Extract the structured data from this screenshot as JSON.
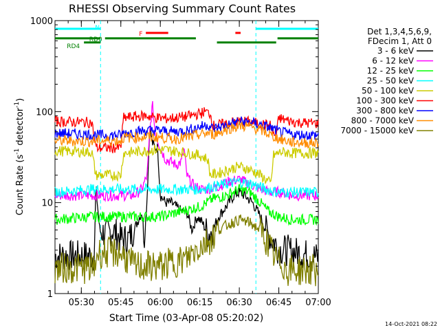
{
  "chart_data": {
    "type": "line",
    "title": "RHESSI Observing Summary Count Rates",
    "xlabel": "Start Time (03-Apr-08 05:20:02)",
    "ylabel_main": "Count Rate (s",
    "ylabel_sup1": "-1",
    "ylabel_mid": " detector",
    "ylabel_sup2": "-1",
    "ylabel_end": ")",
    "y_scale": "log",
    "ylim": [
      1,
      1000
    ],
    "xlim_minutes": [
      0,
      100
    ],
    "x_ticks": [
      {
        "t": 10,
        "label": "05:30"
      },
      {
        "t": 25,
        "label": "05:45"
      },
      {
        "t": 40,
        "label": "06:00"
      },
      {
        "t": 55,
        "label": "06:15"
      },
      {
        "t": 70,
        "label": "06:30"
      },
      {
        "t": 85,
        "label": "06:45"
      },
      {
        "t": 100,
        "label": "07:00"
      }
    ],
    "y_ticks": [
      {
        "v": 1,
        "label": "1"
      },
      {
        "v": 10,
        "label": "10"
      },
      {
        "v": 100,
        "label": "100"
      },
      {
        "v": 1000,
        "label": "1000"
      }
    ],
    "legend_header": [
      "Det 1,3,4,5,6,9,",
      "FDecim 1, Att 0"
    ],
    "legend_placement": "right",
    "series": [
      {
        "name": "3 - 6 keV",
        "color": "#000000",
        "points": [
          [
            0,
            2.6
          ],
          [
            15,
            2.6
          ],
          [
            15.5,
            15
          ],
          [
            17,
            5
          ],
          [
            19,
            4.5
          ],
          [
            22,
            5
          ],
          [
            25,
            4
          ],
          [
            28,
            4
          ],
          [
            30,
            5
          ],
          [
            33,
            8
          ],
          [
            34,
            4
          ],
          [
            35,
            12
          ],
          [
            36,
            70
          ],
          [
            37,
            45
          ],
          [
            38,
            40
          ],
          [
            39,
            40
          ],
          [
            40,
            12
          ],
          [
            42,
            10
          ],
          [
            44,
            10
          ],
          [
            46,
            9
          ],
          [
            48,
            8
          ],
          [
            50,
            8
          ],
          [
            52,
            5
          ],
          [
            54,
            7
          ],
          [
            56,
            6
          ],
          [
            58,
            4.5
          ],
          [
            60,
            5
          ],
          [
            62,
            7
          ],
          [
            65,
            9
          ],
          [
            68,
            12
          ],
          [
            70,
            13
          ],
          [
            72,
            12
          ],
          [
            75,
            10
          ],
          [
            78,
            7
          ],
          [
            80,
            5
          ],
          [
            82,
            4
          ],
          [
            84,
            3.5
          ],
          [
            85,
            3
          ],
          [
            86,
            3
          ],
          [
            88,
            3
          ],
          [
            100,
            2.5
          ]
        ]
      },
      {
        "name": "6 - 12 keV",
        "color": "#ff00ff",
        "points": [
          [
            0,
            12
          ],
          [
            14,
            12
          ],
          [
            16,
            12
          ],
          [
            25,
            12
          ],
          [
            30,
            12
          ],
          [
            33,
            14
          ],
          [
            35,
            20
          ],
          [
            36,
            60
          ],
          [
            37,
            120
          ],
          [
            38,
            60
          ],
          [
            40,
            40
          ],
          [
            42,
            30
          ],
          [
            44,
            28
          ],
          [
            46,
            26
          ],
          [
            48,
            28
          ],
          [
            49,
            40
          ],
          [
            50,
            20
          ],
          [
            52,
            16
          ],
          [
            55,
            14
          ],
          [
            58,
            14
          ],
          [
            62,
            15
          ],
          [
            66,
            17
          ],
          [
            70,
            18
          ],
          [
            74,
            16
          ],
          [
            78,
            14
          ],
          [
            82,
            13
          ],
          [
            86,
            13
          ],
          [
            90,
            12
          ],
          [
            100,
            12
          ]
        ]
      },
      {
        "name": "12 - 25 keV",
        "color": "#00ff00",
        "points": [
          [
            0,
            6.5
          ],
          [
            14,
            7
          ],
          [
            17,
            7
          ],
          [
            25,
            7
          ],
          [
            35,
            7
          ],
          [
            40,
            7
          ],
          [
            48,
            8
          ],
          [
            55,
            9
          ],
          [
            60,
            11
          ],
          [
            65,
            12
          ],
          [
            70,
            14
          ],
          [
            74,
            13
          ],
          [
            78,
            10
          ],
          [
            81,
            8
          ],
          [
            85,
            7
          ],
          [
            90,
            6.5
          ],
          [
            100,
            6.5
          ]
        ]
      },
      {
        "name": "25 - 50 keV",
        "color": "#00ffff",
        "points": [
          [
            0,
            13
          ],
          [
            14,
            14
          ],
          [
            20,
            14
          ],
          [
            30,
            14
          ],
          [
            40,
            14
          ],
          [
            48,
            14
          ],
          [
            55,
            14
          ],
          [
            60,
            15
          ],
          [
            65,
            16
          ],
          [
            70,
            17
          ],
          [
            75,
            16
          ],
          [
            80,
            14
          ],
          [
            85,
            13
          ],
          [
            90,
            13
          ],
          [
            100,
            13
          ]
        ]
      },
      {
        "name": "50 - 100 keV",
        "color": "#cccc00",
        "points": [
          [
            0,
            37
          ],
          [
            14,
            36
          ],
          [
            15.5,
            20
          ],
          [
            16,
            20
          ],
          [
            25,
            20
          ],
          [
            26,
            35
          ],
          [
            30,
            36
          ],
          [
            38,
            38
          ],
          [
            42,
            38
          ],
          [
            48,
            36
          ],
          [
            55,
            33
          ],
          [
            58,
            30
          ],
          [
            59,
            20
          ],
          [
            62,
            21
          ],
          [
            66,
            23
          ],
          [
            70,
            25
          ],
          [
            74,
            23
          ],
          [
            78,
            20
          ],
          [
            80,
            18
          ],
          [
            82,
            16
          ],
          [
            83,
            33
          ],
          [
            86,
            36
          ],
          [
            90,
            35
          ],
          [
            100,
            35
          ]
        ]
      },
      {
        "name": "100 - 300 keV",
        "color": "#ff0000",
        "points": [
          [
            0,
            78
          ],
          [
            14,
            76
          ],
          [
            15.5,
            40
          ],
          [
            25,
            40
          ],
          [
            26,
            85
          ],
          [
            30,
            88
          ],
          [
            35,
            90
          ],
          [
            38,
            86
          ],
          [
            42,
            84
          ],
          [
            45,
            85
          ],
          [
            50,
            88
          ],
          [
            55,
            95
          ],
          [
            57,
            100
          ],
          [
            59,
            95
          ],
          [
            60,
            70
          ],
          [
            63,
            72
          ],
          [
            66,
            75
          ],
          [
            70,
            78
          ],
          [
            74,
            77
          ],
          [
            78,
            73
          ],
          [
            82,
            70
          ],
          [
            83,
            55
          ],
          [
            84,
            55
          ],
          [
            85,
            85
          ],
          [
            88,
            80
          ],
          [
            92,
            76
          ],
          [
            100,
            74
          ]
        ]
      },
      {
        "name": "300 - 800 keV",
        "color": "#0000ff",
        "points": [
          [
            0,
            58
          ],
          [
            14,
            56
          ],
          [
            16,
            55
          ],
          [
            25,
            55
          ],
          [
            26,
            58
          ],
          [
            30,
            60
          ],
          [
            35,
            62
          ],
          [
            40,
            62
          ],
          [
            45,
            60
          ],
          [
            50,
            62
          ],
          [
            55,
            68
          ],
          [
            58,
            72
          ],
          [
            60,
            65
          ],
          [
            63,
            68
          ],
          [
            66,
            72
          ],
          [
            70,
            78
          ],
          [
            74,
            76
          ],
          [
            78,
            72
          ],
          [
            82,
            66
          ],
          [
            85,
            60
          ],
          [
            90,
            56
          ],
          [
            100,
            55
          ]
        ]
      },
      {
        "name": "800 - 7000 keV",
        "color": "#ff8c00",
        "points": [
          [
            0,
            48
          ],
          [
            14,
            47
          ],
          [
            16,
            48
          ],
          [
            25,
            48
          ],
          [
            26,
            52
          ],
          [
            30,
            52
          ],
          [
            35,
            53
          ],
          [
            40,
            52
          ],
          [
            45,
            50
          ],
          [
            50,
            52
          ],
          [
            55,
            56
          ],
          [
            58,
            58
          ],
          [
            60,
            56
          ],
          [
            63,
            60
          ],
          [
            66,
            65
          ],
          [
            70,
            70
          ],
          [
            74,
            68
          ],
          [
            78,
            63
          ],
          [
            82,
            55
          ],
          [
            85,
            50
          ],
          [
            90,
            46
          ],
          [
            100,
            45
          ]
        ]
      },
      {
        "name": "7000 - 15000 keV",
        "color": "#808000",
        "points": [
          [
            0,
            1.9
          ],
          [
            15,
            1.9
          ],
          [
            16,
            2.8
          ],
          [
            25,
            2.8
          ],
          [
            30,
            2.0
          ],
          [
            40,
            2.0
          ],
          [
            45,
            2.2
          ],
          [
            50,
            2.4
          ],
          [
            52,
            2.8
          ],
          [
            55,
            3.3
          ],
          [
            58,
            3.8
          ],
          [
            60,
            4.2
          ],
          [
            62,
            5.0
          ],
          [
            65,
            5.6
          ],
          [
            70,
            6.5
          ],
          [
            74,
            6.0
          ],
          [
            78,
            5.0
          ],
          [
            80,
            4.0
          ],
          [
            82,
            3.0
          ],
          [
            84,
            2.3
          ],
          [
            86,
            2.2
          ],
          [
            88,
            1.8
          ],
          [
            100,
            1.8
          ]
        ]
      }
    ],
    "saa_lines_minutes": [
      17.3,
      76.3
    ],
    "annotations": {
      "N": "N",
      "RD0": "RD0",
      "RD4": "RD4",
      "F": "F"
    },
    "flag_bars": [
      {
        "label": "N",
        "color": "#00ffff",
        "level": 0.97,
        "segments": [
          [
            0,
            17.3
          ],
          [
            76.3,
            100
          ]
        ]
      },
      {
        "label": "RD0",
        "color": "#008000",
        "level": 0.935,
        "segments": [
          [
            0,
            17.3
          ],
          [
            19,
            53.5
          ],
          [
            84.5,
            100
          ]
        ]
      },
      {
        "label": "RD4",
        "color": "#008000",
        "level": 0.92,
        "segments": [
          [
            11,
            17.3
          ],
          [
            61.5,
            84
          ]
        ]
      },
      {
        "label": "F",
        "color": "#ff0000",
        "level": 0.955,
        "segments": [
          [
            34.5,
            43
          ],
          [
            68.5,
            70.5
          ]
        ]
      }
    ]
  },
  "footer": {
    "timestamp": "14-Oct-2021 08:22"
  }
}
